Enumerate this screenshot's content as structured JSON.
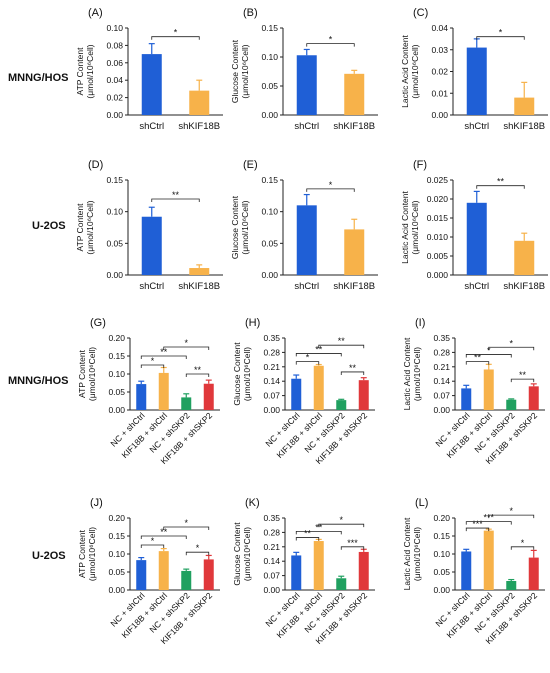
{
  "colors": {
    "blue": "#1f5fd6",
    "orange": "#f7b24a",
    "green": "#20a060",
    "red": "#e0383b"
  },
  "row_labels": [
    "MNNG/HOS",
    "U-2OS",
    "MNNG/HOS",
    "U-2OS"
  ],
  "chart_data": [
    {
      "panel": "(A)",
      "type": "bar",
      "ylabel": "ATP Content\n(μmol/10⁶Cell)",
      "ylim": [
        0,
        0.1
      ],
      "yticks": [
        "0.00",
        "0.02",
        "0.04",
        "0.06",
        "0.08",
        "0.10"
      ],
      "categories": [
        "shCtrl",
        "shKIF18B"
      ],
      "values": [
        0.07,
        0.028
      ],
      "errors": [
        0.012,
        0.012
      ],
      "colors": [
        "blue",
        "orange"
      ],
      "sig": [
        {
          "from": 0,
          "to": 1,
          "level": 0.09,
          "label": "*"
        }
      ]
    },
    {
      "panel": "(B)",
      "type": "bar",
      "ylabel": "Glucose Content\n(μmol/10⁶Cell)",
      "ylim": [
        0,
        0.15
      ],
      "yticks": [
        "0.00",
        "0.05",
        "0.10",
        "0.15"
      ],
      "categories": [
        "shCtrl",
        "shKIF18B"
      ],
      "values": [
        0.103,
        0.071
      ],
      "errors": [
        0.01,
        0.006
      ],
      "colors": [
        "blue",
        "orange"
      ],
      "sig": [
        {
          "from": 0,
          "to": 1,
          "level": 0.123,
          "label": "*"
        }
      ]
    },
    {
      "panel": "(C)",
      "type": "bar",
      "ylabel": "Lactic Acid Content\n(μmol/10⁶Cell)",
      "ylim": [
        0,
        0.04
      ],
      "yticks": [
        "0.00",
        "0.01",
        "0.02",
        "0.03",
        "0.04"
      ],
      "categories": [
        "shCtrl",
        "shKIF18B"
      ],
      "values": [
        0.031,
        0.008
      ],
      "errors": [
        0.004,
        0.007
      ],
      "colors": [
        "blue",
        "orange"
      ],
      "sig": [
        {
          "from": 0,
          "to": 1,
          "level": 0.036,
          "label": "*"
        }
      ]
    },
    {
      "panel": "(D)",
      "type": "bar",
      "ylabel": "ATP Content\n(μmol/10⁶Cell)",
      "ylim": [
        0,
        0.15
      ],
      "yticks": [
        "0.00",
        "0.05",
        "0.10",
        "0.15"
      ],
      "categories": [
        "shCtrl",
        "shKIF18B"
      ],
      "values": [
        0.092,
        0.011
      ],
      "errors": [
        0.015,
        0.005
      ],
      "colors": [
        "blue",
        "orange"
      ],
      "sig": [
        {
          "from": 0,
          "to": 1,
          "level": 0.12,
          "label": "**"
        }
      ]
    },
    {
      "panel": "(E)",
      "type": "bar",
      "ylabel": "Glucose Content\n(μmol/10⁶Cell)",
      "ylim": [
        0,
        0.15
      ],
      "yticks": [
        "0.00",
        "0.05",
        "0.10",
        "0.15"
      ],
      "categories": [
        "shCtrl",
        "shKIF18B"
      ],
      "values": [
        0.11,
        0.072
      ],
      "errors": [
        0.017,
        0.016
      ],
      "colors": [
        "blue",
        "orange"
      ],
      "sig": [
        {
          "from": 0,
          "to": 1,
          "level": 0.136,
          "label": "*"
        }
      ]
    },
    {
      "panel": "(F)",
      "type": "bar",
      "ylabel": "Lactic Acid Content\n(μmol/10⁶Cell)",
      "ylim": [
        0,
        0.025
      ],
      "yticks": [
        "0.000",
        "0.005",
        "0.010",
        "0.015",
        "0.020",
        "0.025"
      ],
      "categories": [
        "shCtrl",
        "shKIF18B"
      ],
      "values": [
        0.019,
        0.009
      ],
      "errors": [
        0.003,
        0.002
      ],
      "colors": [
        "blue",
        "orange"
      ],
      "sig": [
        {
          "from": 0,
          "to": 1,
          "level": 0.0235,
          "label": "**"
        }
      ]
    },
    {
      "panel": "(G)",
      "type": "bar",
      "ylabel": "ATP Content\n(μmol/10⁶Cell)",
      "ylim": [
        0,
        0.2
      ],
      "yticks": [
        "0.00",
        "0.05",
        "0.10",
        "0.15",
        "0.20"
      ],
      "categories": [
        "NC + shCtrl",
        "KIF18B + shCtrl",
        "NC + shSKP2",
        "KIF18B + shSKP2"
      ],
      "values": [
        0.072,
        0.103,
        0.035,
        0.073
      ],
      "errors": [
        0.008,
        0.015,
        0.01,
        0.01
      ],
      "colors": [
        "blue",
        "orange",
        "green",
        "red"
      ],
      "sig": [
        {
          "from": 0,
          "to": 1,
          "level": 0.125,
          "label": "*"
        },
        {
          "from": 0,
          "to": 2,
          "level": 0.15,
          "label": "**"
        },
        {
          "from": 1,
          "to": 3,
          "level": 0.175,
          "label": "*"
        },
        {
          "from": 2,
          "to": 3,
          "level": 0.1,
          "label": "**"
        }
      ]
    },
    {
      "panel": "(H)",
      "type": "bar",
      "ylabel": "Glucose Content\n(μmol/10⁶Cell)",
      "ylim": [
        0,
        0.35
      ],
      "yticks": [
        "0.00",
        "0.07",
        "0.14",
        "0.21",
        "0.28",
        "0.35"
      ],
      "categories": [
        "NC + shCtrl",
        "KIF18B + shCtrl",
        "NC + shSKP2",
        "KIF18B + shSKP2"
      ],
      "values": [
        0.152,
        0.215,
        0.048,
        0.145
      ],
      "errors": [
        0.018,
        0.006,
        0.004,
        0.012
      ],
      "colors": [
        "blue",
        "orange",
        "green",
        "red"
      ],
      "sig": [
        {
          "from": 0,
          "to": 1,
          "level": 0.235,
          "label": "*"
        },
        {
          "from": 0,
          "to": 2,
          "level": 0.275,
          "label": "**"
        },
        {
          "from": 1,
          "to": 3,
          "level": 0.315,
          "label": "**"
        },
        {
          "from": 2,
          "to": 3,
          "level": 0.185,
          "label": "**"
        }
      ]
    },
    {
      "panel": "(I)",
      "type": "bar",
      "ylabel": "Lactic Acid Content\n(μmol/10⁶Cell)",
      "ylim": [
        0,
        0.35
      ],
      "yticks": [
        "0.00",
        "0.07",
        "0.14",
        "0.21",
        "0.28",
        "0.35"
      ],
      "categories": [
        "NC + shCtrl",
        "KIF18B + shCtrl",
        "NC + shSKP2",
        "KIF18B + shSKP2"
      ],
      "values": [
        0.105,
        0.197,
        0.05,
        0.115
      ],
      "errors": [
        0.015,
        0.025,
        0.004,
        0.012
      ],
      "colors": [
        "blue",
        "orange",
        "green",
        "red"
      ],
      "sig": [
        {
          "from": 0,
          "to": 1,
          "level": 0.235,
          "label": "**"
        },
        {
          "from": 0,
          "to": 2,
          "level": 0.27,
          "label": "*"
        },
        {
          "from": 1,
          "to": 3,
          "level": 0.305,
          "label": "*"
        },
        {
          "from": 2,
          "to": 3,
          "level": 0.15,
          "label": "**"
        }
      ]
    },
    {
      "panel": "(J)",
      "type": "bar",
      "ylabel": "ATP Content\n(μmol/10⁶Cell)",
      "ylim": [
        0,
        0.2
      ],
      "yticks": [
        "0.00",
        "0.05",
        "0.10",
        "0.15",
        "0.20"
      ],
      "categories": [
        "NC + shCtrl",
        "KIF18B + shCtrl",
        "NC + shSKP2",
        "KIF18B + shSKP2"
      ],
      "values": [
        0.083,
        0.108,
        0.053,
        0.085
      ],
      "errors": [
        0.007,
        0.007,
        0.005,
        0.011
      ],
      "colors": [
        "blue",
        "orange",
        "green",
        "red"
      ],
      "sig": [
        {
          "from": 0,
          "to": 1,
          "level": 0.125,
          "label": "*"
        },
        {
          "from": 0,
          "to": 2,
          "level": 0.15,
          "label": "**"
        },
        {
          "from": 1,
          "to": 3,
          "level": 0.175,
          "label": "*"
        },
        {
          "from": 2,
          "to": 3,
          "level": 0.105,
          "label": "*"
        }
      ]
    },
    {
      "panel": "(K)",
      "type": "bar",
      "ylabel": "Glucose Content\n(μmol/10⁶Cell)",
      "ylim": [
        0,
        0.35
      ],
      "yticks": [
        "0.00",
        "0.07",
        "0.14",
        "0.21",
        "0.28",
        "0.35"
      ],
      "categories": [
        "NC + shCtrl",
        "KIF18B + shCtrl",
        "NC + shSKP2",
        "KIF18B + shSKP2"
      ],
      "values": [
        0.168,
        0.238,
        0.057,
        0.185
      ],
      "errors": [
        0.015,
        0.008,
        0.01,
        0.013
      ],
      "colors": [
        "blue",
        "orange",
        "green",
        "red"
      ],
      "sig": [
        {
          "from": 0,
          "to": 1,
          "level": 0.255,
          "label": "**"
        },
        {
          "from": 0,
          "to": 2,
          "level": 0.285,
          "label": "**"
        },
        {
          "from": 1,
          "to": 3,
          "level": 0.32,
          "label": "*"
        },
        {
          "from": 2,
          "to": 3,
          "level": 0.21,
          "label": "***"
        }
      ]
    },
    {
      "panel": "(L)",
      "type": "bar",
      "ylabel": "Lactic Acid Content\n(μmol/10⁶Cell)",
      "ylim": [
        0,
        0.2
      ],
      "yticks": [
        "0.00",
        "0.05",
        "0.10",
        "0.15",
        "0.20"
      ],
      "categories": [
        "NC + shCtrl",
        "KIF18B + shCtrl",
        "NC + shSKP2",
        "KIF18B + shSKP2"
      ],
      "values": [
        0.107,
        0.165,
        0.025,
        0.09
      ],
      "errors": [
        0.006,
        0.004,
        0.004,
        0.02
      ],
      "colors": [
        "blue",
        "orange",
        "green",
        "red"
      ],
      "sig": [
        {
          "from": 0,
          "to": 1,
          "level": 0.172,
          "label": "***"
        },
        {
          "from": 0,
          "to": 2,
          "level": 0.19,
          "label": "***"
        },
        {
          "from": 1,
          "to": 3,
          "level": 0.208,
          "label": "*"
        },
        {
          "from": 2,
          "to": 3,
          "level": 0.12,
          "label": "*"
        }
      ]
    }
  ]
}
